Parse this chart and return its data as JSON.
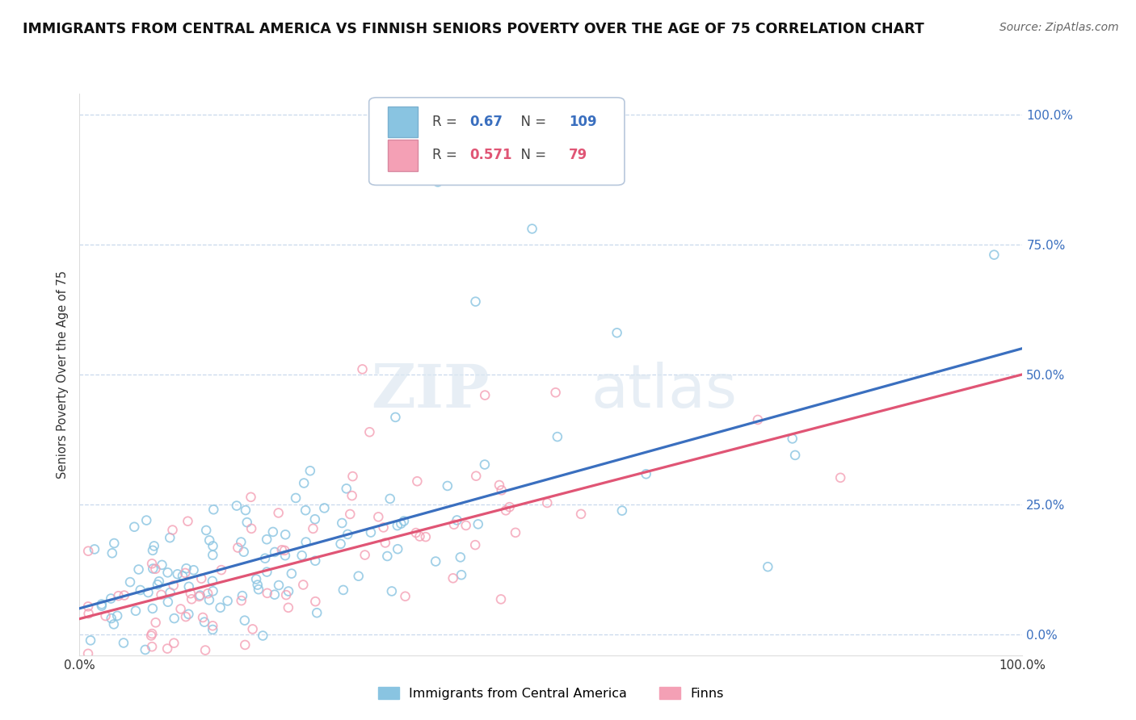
{
  "title": "IMMIGRANTS FROM CENTRAL AMERICA VS FINNISH SENIORS POVERTY OVER THE AGE OF 75 CORRELATION CHART",
  "source": "Source: ZipAtlas.com",
  "ylabel": "Seniors Poverty Over the Age of 75",
  "blue_label": "Immigrants from Central America",
  "pink_label": "Finns",
  "blue_R": 0.67,
  "blue_N": 109,
  "pink_R": 0.571,
  "pink_N": 79,
  "blue_color": "#89c4e1",
  "pink_color": "#f4a0b5",
  "blue_line_color": "#3a6fbf",
  "pink_line_color": "#e05575",
  "watermark_zip": "ZIP",
  "watermark_atlas": "atlas",
  "xmin": 0.0,
  "xmax": 1.0,
  "ymin": 0.0,
  "ymax": 1.0,
  "background_color": "#ffffff",
  "grid_color": "#c8d8ec",
  "title_fontsize": 12.5,
  "source_fontsize": 10,
  "blue_line_start_y": 0.05,
  "blue_line_end_y": 0.55,
  "pink_line_start_y": 0.03,
  "pink_line_end_y": 0.5,
  "seed_blue": 42,
  "seed_pink": 7
}
